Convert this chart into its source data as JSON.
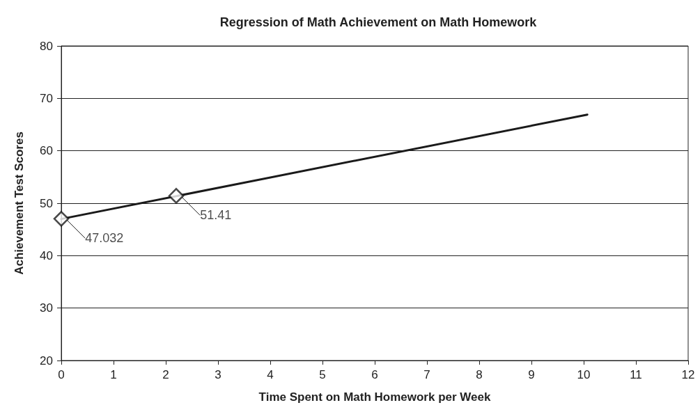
{
  "chart_data": {
    "type": "line",
    "title": "Regression of Math Achievement on Math Homework",
    "xlabel": "Time Spent on Math Homework per Week",
    "ylabel": "Achievement Test Scores",
    "series": [
      {
        "color": "#1a1a1a",
        "x": [
          0,
          10.07
        ],
        "values": [
          47,
          66.9
        ],
        "marker": "none",
        "line_style": "solid"
      },
      {
        "type": "scatter",
        "color": "#1a1a1a",
        "x": [
          0,
          2.2
        ],
        "values": [
          47.032,
          51.41
        ],
        "marker": "diamond",
        "value_labels": [
          "47.032",
          "51.41"
        ]
      }
    ],
    "xlim": [
      0,
      12
    ],
    "xticks": [
      0,
      1,
      2,
      3,
      4,
      5,
      6,
      7,
      8,
      9,
      10,
      11,
      12
    ],
    "ylim": [
      20,
      80
    ],
    "yticks": [
      20,
      30,
      40,
      50,
      60,
      70,
      80
    ],
    "grid": "y"
  }
}
